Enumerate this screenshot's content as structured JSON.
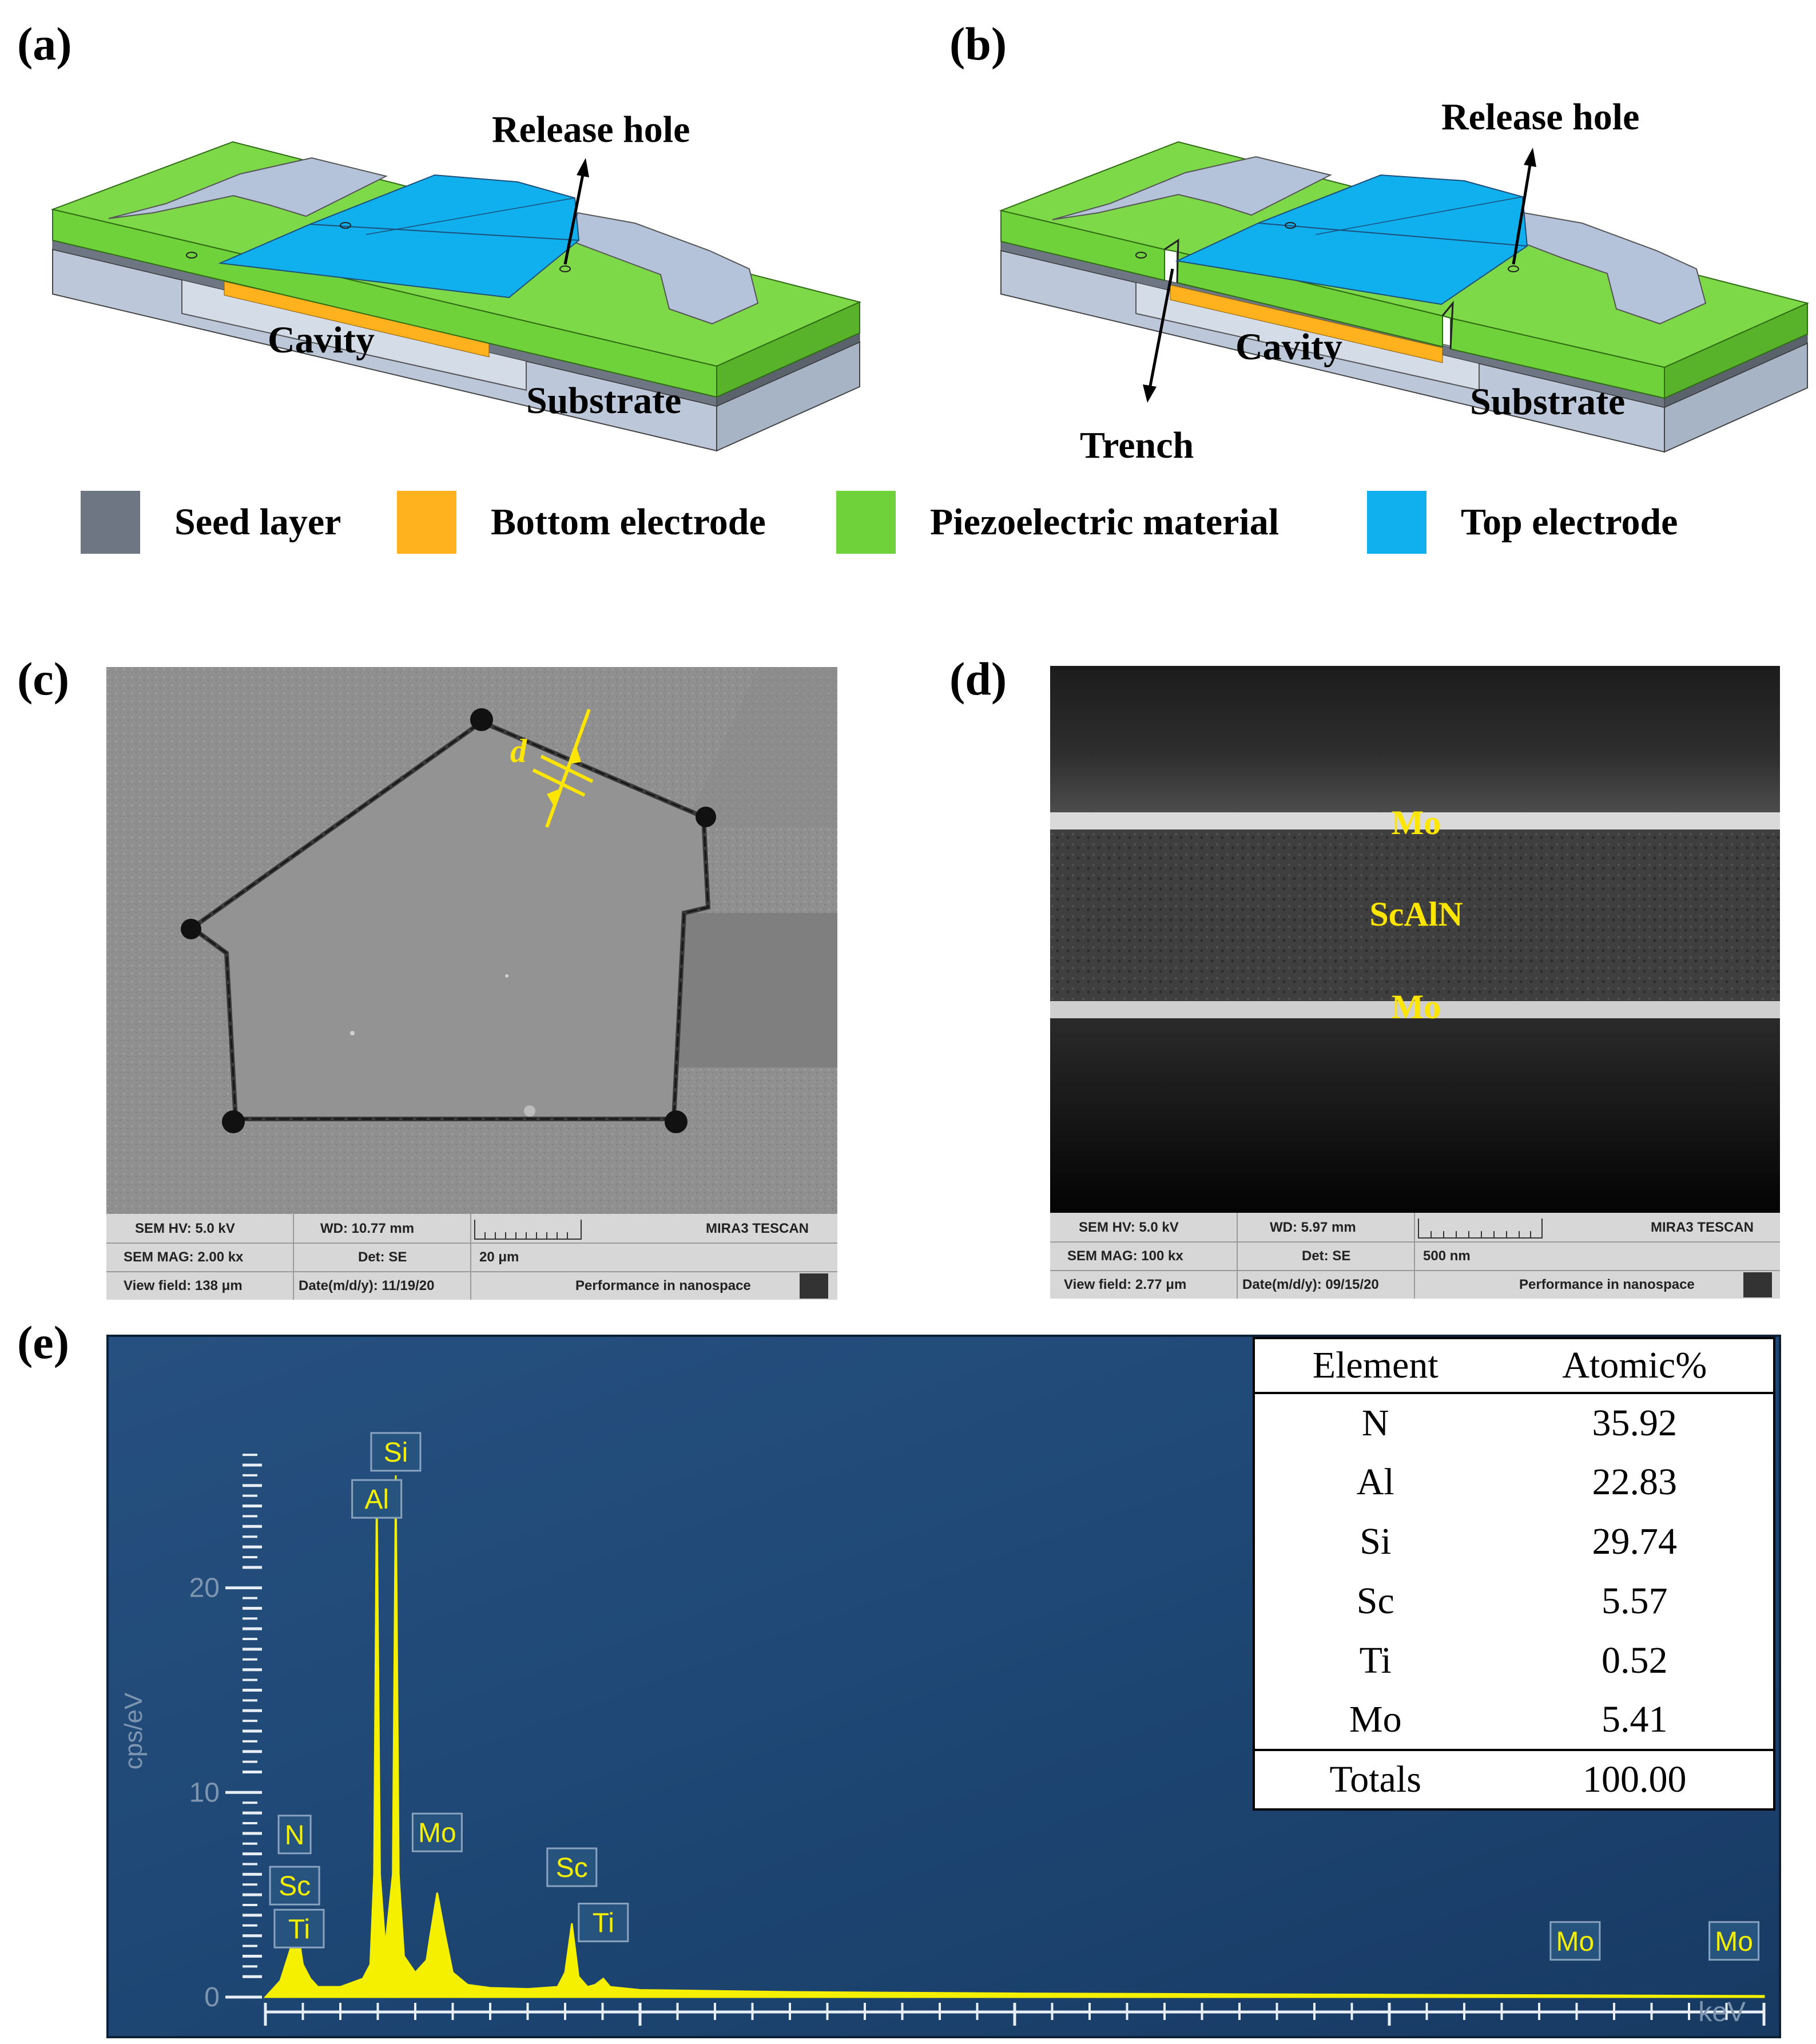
{
  "panels": {
    "a": {
      "label": "(a)",
      "release_hole": "Release hole",
      "cavity": "Cavity",
      "substrate": "Substrate"
    },
    "b": {
      "label": "(b)",
      "release_hole": "Release hole",
      "cavity": "Cavity",
      "substrate": "Substrate",
      "trench": "Trench"
    },
    "c": {
      "label": "(c)",
      "dimension_label": "d"
    },
    "d": {
      "label": "(d)",
      "layers": [
        "Mo",
        "ScAlN",
        "Mo"
      ]
    },
    "e": {
      "label": "(e)"
    }
  },
  "legend": [
    {
      "label": "Seed layer",
      "color": "#6d7682"
    },
    {
      "label": "Bottom electrode",
      "color": "#ffb21e"
    },
    {
      "label": "Piezoelectric material",
      "color": "#6fd23a"
    },
    {
      "label": "Top electrode",
      "color": "#10b0ef"
    }
  ],
  "colors": {
    "substrate": "#bcc8da",
    "seed": "#6d7682",
    "bottom": "#ffb21e",
    "piezo": "#6fd23a",
    "top": "#10b0ef",
    "spectrum": "#f4f000"
  },
  "sem_c": {
    "hv": "SEM HV: 5.0 kV",
    "wd": "WD: 10.77 mm",
    "brand": "MIRA3 TESCAN",
    "mag": "SEM MAG: 2.00 kx",
    "det": "Det: SE",
    "scale": "20 μm",
    "view": "View field: 138 μm",
    "date": "Date(m/d/y): 11/19/20",
    "slogan": "Performance in nanospace"
  },
  "sem_d": {
    "hv": "SEM HV: 5.0 kV",
    "wd": "WD: 5.97 mm",
    "brand": "MIRA3 TESCAN",
    "mag": "SEM MAG: 100 kx",
    "det": "Det: SE",
    "scale": "500 nm",
    "view": "View field: 2.77 μm",
    "date": "Date(m/d/y): 09/15/20",
    "slogan": "Performance in nanospace"
  },
  "composition": {
    "headers": [
      "Element",
      "Atomic%"
    ],
    "rows": [
      {
        "element": "N",
        "value": "35.92"
      },
      {
        "element": "Al",
        "value": "22.83"
      },
      {
        "element": "Si",
        "value": "29.74"
      },
      {
        "element": "Sc",
        "value": "5.57"
      },
      {
        "element": "Ti",
        "value": "0.52"
      },
      {
        "element": "Mo",
        "value": "5.41"
      }
    ],
    "total_label": "Totals",
    "total_value": "100.00"
  },
  "chart_data": {
    "type": "line",
    "xlabel": "keV",
    "ylabel": "cps/eV",
    "xlim": [
      0,
      20
    ],
    "ylim": [
      0,
      26
    ],
    "x_ticks": [
      0,
      5,
      10,
      15
    ],
    "y_ticks": [
      0,
      10,
      20
    ],
    "series": [
      {
        "values": [
          [
            0.0,
            0
          ],
          [
            0.2,
            0.8
          ],
          [
            0.39,
            3.0
          ],
          [
            0.42,
            4.2
          ],
          [
            0.45,
            2.8
          ],
          [
            0.5,
            1.6
          ],
          [
            0.6,
            0.9
          ],
          [
            0.7,
            0.5
          ],
          [
            1.0,
            0.5
          ],
          [
            1.3,
            0.9
          ],
          [
            1.4,
            1.6
          ],
          [
            1.45,
            6
          ],
          [
            1.486,
            25.0
          ],
          [
            1.53,
            6
          ],
          [
            1.6,
            2.5
          ],
          [
            1.7,
            6
          ],
          [
            1.74,
            25.5
          ],
          [
            1.78,
            6
          ],
          [
            1.85,
            2
          ],
          [
            2.0,
            1.2
          ],
          [
            2.15,
            1.8
          ],
          [
            2.2,
            3
          ],
          [
            2.293,
            5.1
          ],
          [
            2.4,
            3
          ],
          [
            2.5,
            1.2
          ],
          [
            2.7,
            0.6
          ],
          [
            3.0,
            0.45
          ],
          [
            3.5,
            0.4
          ],
          [
            3.9,
            0.5
          ],
          [
            4.0,
            1.2
          ],
          [
            4.09,
            3.6
          ],
          [
            4.18,
            1.0
          ],
          [
            4.3,
            0.5
          ],
          [
            4.4,
            0.6
          ],
          [
            4.51,
            0.9
          ],
          [
            4.6,
            0.5
          ],
          [
            5.0,
            0.35
          ],
          [
            7.0,
            0.25
          ],
          [
            10.0,
            0.18
          ],
          [
            15.0,
            0.12
          ],
          [
            20.0,
            0.06
          ]
        ]
      }
    ],
    "peak_labels": [
      {
        "text": "Si",
        "x": 1.74,
        "y": 25.5
      },
      {
        "text": "Al",
        "x": 1.486,
        "y": 23.2
      },
      {
        "text": "N",
        "x": 0.39,
        "y": 6.8
      },
      {
        "text": "Sc",
        "x": 0.39,
        "y": 4.3
      },
      {
        "text": "Ti",
        "x": 0.45,
        "y": 2.2
      },
      {
        "text": "Mo",
        "x": 2.293,
        "y": 6.9
      },
      {
        "text": "Sc",
        "x": 4.09,
        "y": 5.2
      },
      {
        "text": "Ti",
        "x": 4.51,
        "y": 2.5
      },
      {
        "text": "Mo",
        "x": 17.48,
        "y": 1.6
      },
      {
        "text": "Mo",
        "x": 19.6,
        "y": 1.6
      }
    ]
  }
}
